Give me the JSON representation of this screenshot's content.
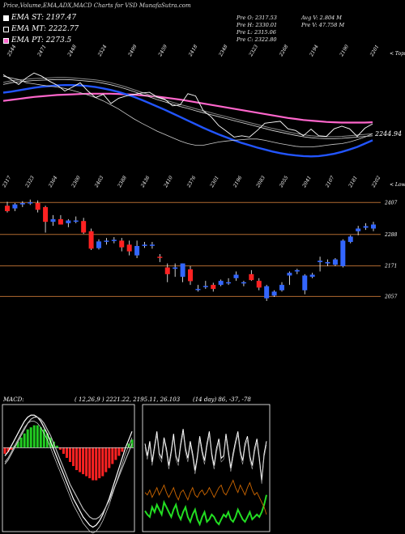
{
  "title": "Price,Volume,EMA,ADX,MACD Charts for VSD MunafaSutra.com",
  "legend": [
    {
      "label": "EMA ST: 2197.47",
      "color": "#ffffff"
    },
    {
      "label": "EMA MT: 2222.77",
      "color": "#000000"
    },
    {
      "label": "EMA PT: 2273.5",
      "color": "#ff66cc"
    }
  ],
  "ohlc": {
    "open": "Pre O: 2317.53",
    "high": "Pre H: 2330.01",
    "low": "Pre L: 2315.06",
    "close": "Pre C: 2322.80",
    "avg_vol": "Avg V: 2.804 M",
    "pre_vol": "Pre V: 47.758 M"
  },
  "top_ticks": [
    "2544",
    "2471",
    "2448",
    "2524",
    "2499",
    "2459",
    "2418",
    "2348",
    "2323",
    "2268",
    "2194",
    "2190",
    "2201"
  ],
  "bottom_ticks": [
    "2317",
    "2323",
    "2364",
    "2300",
    "2403",
    "2388",
    "2436",
    "2410",
    "2376",
    "2301",
    "2196",
    "2083",
    "2055",
    "2041",
    "2107",
    "2181",
    "2202"
  ],
  "top_label": "< Tops",
  "bottom_label": "< Lows",
  "ema_value_label": "2244.94",
  "macd": {
    "head": "MACD:",
    "params": "( 12,26,9 ) 2221.22, 2195.11, 26.103"
  },
  "adx": {
    "params": "(14 day) 86, -37, -78"
  },
  "colors": {
    "bull": "#3366ff",
    "bear": "#ff2222",
    "level_line": "#b06a30",
    "ema_st": "#ffffff",
    "ema_mt": "#000000",
    "ema_pt": "#ff66cc",
    "ema_blue": "#2255ff",
    "macd_pos": "#22cc22",
    "macd_neg": "#ff2222",
    "adx_line": "#ffffff",
    "di_plus": "#22dd22",
    "di_minus": "#cc6600"
  },
  "chart_data": {
    "type": "candlestick",
    "price_levels": [
      2407,
      2288,
      2171,
      2057
    ],
    "candles": [
      {
        "o": 2395,
        "h": 2410,
        "l": 2370,
        "c": 2375
      },
      {
        "o": 2385,
        "h": 2405,
        "l": 2375,
        "c": 2400
      },
      {
        "o": 2400,
        "h": 2412,
        "l": 2390,
        "c": 2405
      },
      {
        "o": 2408,
        "h": 2418,
        "l": 2398,
        "c": 2408
      },
      {
        "o": 2405,
        "h": 2415,
        "l": 2370,
        "c": 2380
      },
      {
        "o": 2390,
        "h": 2395,
        "l": 2295,
        "c": 2335
      },
      {
        "o": 2335,
        "h": 2360,
        "l": 2320,
        "c": 2345
      },
      {
        "o": 2345,
        "h": 2360,
        "l": 2325,
        "c": 2325
      },
      {
        "o": 2330,
        "h": 2345,
        "l": 2315,
        "c": 2340
      },
      {
        "o": 2340,
        "h": 2355,
        "l": 2330,
        "c": 2340
      },
      {
        "o": 2338,
        "h": 2350,
        "l": 2290,
        "c": 2295
      },
      {
        "o": 2300,
        "h": 2310,
        "l": 2230,
        "c": 2235
      },
      {
        "o": 2237,
        "h": 2270,
        "l": 2232,
        "c": 2262
      },
      {
        "o": 2262,
        "h": 2275,
        "l": 2250,
        "c": 2265
      },
      {
        "o": 2268,
        "h": 2278,
        "l": 2255,
        "c": 2268
      },
      {
        "o": 2265,
        "h": 2275,
        "l": 2225,
        "c": 2240
      },
      {
        "o": 2250,
        "h": 2265,
        "l": 2210,
        "c": 2225
      },
      {
        "o": 2210,
        "h": 2265,
        "l": 2200,
        "c": 2245
      },
      {
        "o": 2245,
        "h": 2260,
        "l": 2238,
        "c": 2250
      },
      {
        "o": 2250,
        "h": 2260,
        "l": 2235,
        "c": 2250
      },
      {
        "o": 2205,
        "h": 2215,
        "l": 2185,
        "c": 2203
      },
      {
        "o": 2165,
        "h": 2180,
        "l": 2110,
        "c": 2140
      },
      {
        "o": 2160,
        "h": 2180,
        "l": 2130,
        "c": 2165
      },
      {
        "o": 2130,
        "h": 2180,
        "l": 2110,
        "c": 2180
      },
      {
        "o": 2158,
        "h": 2170,
        "l": 2100,
        "c": 2114
      },
      {
        "o": 2085,
        "h": 2100,
        "l": 2075,
        "c": 2085
      },
      {
        "o": 2095,
        "h": 2115,
        "l": 2085,
        "c": 2096
      },
      {
        "o": 2100,
        "h": 2108,
        "l": 2075,
        "c": 2085
      },
      {
        "o": 2100,
        "h": 2120,
        "l": 2095,
        "c": 2115
      },
      {
        "o": 2110,
        "h": 2125,
        "l": 2100,
        "c": 2110
      },
      {
        "o": 2125,
        "h": 2150,
        "l": 2115,
        "c": 2138
      },
      {
        "o": 2110,
        "h": 2115,
        "l": 2095,
        "c": 2110
      },
      {
        "o": 2140,
        "h": 2155,
        "l": 2115,
        "c": 2118
      },
      {
        "o": 2115,
        "h": 2125,
        "l": 2080,
        "c": 2090
      },
      {
        "o": 2050,
        "h": 2100,
        "l": 2040,
        "c": 2095
      },
      {
        "o": 2060,
        "h": 2080,
        "l": 2055,
        "c": 2075
      },
      {
        "o": 2080,
        "h": 2110,
        "l": 2075,
        "c": 2100
      },
      {
        "o": 2135,
        "h": 2150,
        "l": 2100,
        "c": 2145
      },
      {
        "o": 2150,
        "h": 2160,
        "l": 2140,
        "c": 2155
      },
      {
        "o": 2080,
        "h": 2140,
        "l": 2065,
        "c": 2135
      },
      {
        "o": 2130,
        "h": 2145,
        "l": 2125,
        "c": 2138
      },
      {
        "o": 2185,
        "h": 2205,
        "l": 2150,
        "c": 2190
      },
      {
        "o": 2180,
        "h": 2195,
        "l": 2170,
        "c": 2185
      },
      {
        "o": 2175,
        "h": 2200,
        "l": 2170,
        "c": 2195
      },
      {
        "o": 2170,
        "h": 2270,
        "l": 2165,
        "c": 2265
      },
      {
        "o": 2260,
        "h": 2285,
        "l": 2255,
        "c": 2280
      },
      {
        "o": 2300,
        "h": 2320,
        "l": 2285,
        "c": 2310
      },
      {
        "o": 2313,
        "h": 2330,
        "l": 2305,
        "c": 2319
      },
      {
        "o": 2310,
        "h": 2335,
        "l": 2300,
        "c": 2325
      }
    ],
    "ema_st": [
      2405,
      2400,
      2395,
      2385,
      2382,
      2378,
      2375,
      2372,
      2368,
      2362,
      2355,
      2348,
      2340,
      2330,
      2318,
      2305,
      2290,
      2275,
      2262,
      2250,
      2238,
      2228,
      2218,
      2208,
      2200,
      2195,
      2195,
      2200,
      2205,
      2208,
      2210,
      2212,
      2214,
      2214,
      2210,
      2205,
      2200,
      2196,
      2192,
      2190,
      2190,
      2192,
      2195,
      2198,
      2200,
      2205,
      2212,
      2220,
      2230
    ],
    "ema_mt": [
      2380,
      2385,
      2388,
      2390,
      2392,
      2393,
      2394,
      2395,
      2395,
      2394,
      2392,
      2390,
      2388,
      2384,
      2379,
      2373,
      2366,
      2358,
      2350,
      2342,
      2334,
      2327,
      2320,
      2313,
      2307,
      2300,
      2294,
      2288,
      2282,
      2276,
      2270,
      2264,
      2258,
      2252,
      2246,
      2240,
      2235,
      2230,
      2225,
      2221,
      2218,
      2216,
      2215,
      2215,
      2216,
      2218,
      2220,
      2222,
      2224
    ],
    "ema_pt": [
      2330,
      2333,
      2336,
      2339,
      2342,
      2344,
      2346,
      2348,
      2349,
      2350,
      2351,
      2352,
      2352,
      2352,
      2352,
      2351,
      2350,
      2349,
      2347,
      2345,
      2343,
      2340,
      2337,
      2334,
      2330,
      2326,
      2322,
      2318,
      2314,
      2310,
      2306,
      2302,
      2298,
      2294,
      2290,
      2286,
      2282,
      2278,
      2275,
      2272,
      2270,
      2268,
      2266,
      2265,
      2264,
      2264,
      2264,
      2264,
      2265
    ],
    "ema_blue": [
      2355,
      2358,
      2362,
      2366,
      2370,
      2373,
      2375,
      2377,
      2378,
      2378,
      2377,
      2375,
      2372,
      2368,
      2363,
      2357,
      2350,
      2342,
      2333,
      2323,
      2313,
      2303,
      2292,
      2281,
      2270,
      2259,
      2248,
      2238,
      2228,
      2219,
      2210,
      2202,
      2195,
      2188,
      2182,
      2176,
      2171,
      2167,
      2164,
      2162,
      2161,
      2162,
      2165,
      2169,
      2175,
      2182,
      2190,
      2200,
      2210
    ],
    "close_line": [
      2410,
      2395,
      2380,
      2400,
      2415,
      2405,
      2390,
      2378,
      2360,
      2372,
      2385,
      2360,
      2340,
      2350,
      2322,
      2338,
      2345,
      2350,
      2354,
      2356,
      2342,
      2335,
      2315,
      2318,
      2352,
      2345,
      2300,
      2282,
      2255,
      2238,
      2220,
      2224,
      2220,
      2240,
      2262,
      2265,
      2268,
      2245,
      2240,
      2224,
      2244,
      2224,
      2222,
      2245,
      2253,
      2245,
      2222,
      2247,
      2260
    ],
    "macd_hist": [
      -3,
      -2,
      -1,
      1,
      3,
      5,
      7,
      9,
      10,
      11,
      11,
      10,
      9,
      7,
      5,
      3,
      1,
      -1,
      -3,
      -5,
      -7,
      -9,
      -11,
      -12,
      -13,
      -14,
      -15,
      -16,
      -16,
      -15,
      -14,
      -12,
      -10,
      -8,
      -6,
      -4,
      -2,
      0,
      2,
      4
    ],
    "macd_line": [
      -4,
      -2,
      1,
      4,
      7,
      10,
      13,
      15,
      16,
      16,
      15,
      13,
      10,
      7,
      3,
      -1,
      -5,
      -9,
      -13,
      -17,
      -21,
      -25,
      -28,
      -31,
      -34,
      -36,
      -38,
      -39,
      -38,
      -36,
      -33,
      -29,
      -25,
      -20,
      -15,
      -10,
      -5,
      0,
      4,
      8
    ],
    "macd_signal": [
      -8,
      -6,
      -3,
      0,
      3,
      6,
      9,
      12,
      14,
      15,
      15,
      14,
      12,
      9,
      6,
      2,
      -2,
      -6,
      -10,
      -14,
      -18,
      -21,
      -24,
      -27,
      -30,
      -32,
      -34,
      -35,
      -35,
      -34,
      -32,
      -29,
      -26,
      -22,
      -18,
      -14,
      -10,
      -6,
      -2,
      2
    ],
    "adx": [
      70,
      60,
      72,
      55,
      68,
      80,
      62,
      58,
      75,
      66,
      52,
      64,
      78,
      60,
      55,
      70,
      82,
      66,
      58,
      72,
      62,
      48,
      60,
      76,
      64,
      56,
      70,
      80,
      62,
      52,
      66,
      74,
      58,
      60,
      78,
      64,
      50,
      62,
      72,
      80,
      64,
      56,
      70,
      76,
      60,
      52,
      66,
      74,
      58,
      40,
      62,
      72
    ],
    "di_plus": [
      15,
      12,
      10,
      18,
      14,
      20,
      16,
      12,
      22,
      18,
      14,
      10,
      16,
      20,
      12,
      8,
      14,
      18,
      10,
      6,
      12,
      16,
      8,
      4,
      10,
      14,
      6,
      8,
      12,
      10,
      6,
      4,
      8,
      12,
      10,
      14,
      8,
      6,
      10,
      16,
      12,
      8,
      6,
      10,
      14,
      8,
      10,
      12,
      10,
      14,
      20,
      28
    ],
    "di_minus": [
      30,
      28,
      32,
      26,
      30,
      34,
      28,
      32,
      36,
      30,
      26,
      30,
      34,
      28,
      24,
      30,
      32,
      28,
      24,
      30,
      34,
      28,
      26,
      30,
      32,
      28,
      30,
      34,
      30,
      26,
      30,
      34,
      36,
      30,
      28,
      32,
      36,
      40,
      34,
      30,
      36,
      32,
      28,
      34,
      38,
      32,
      28,
      30,
      26,
      22,
      18,
      12
    ]
  }
}
